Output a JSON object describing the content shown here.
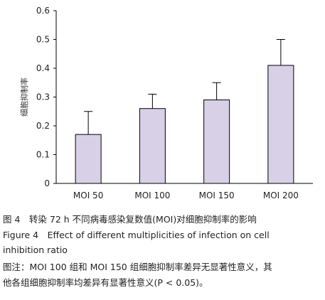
{
  "chart_data": {
    "type": "bar",
    "categories": [
      "MOI 50",
      "MOI 100",
      "MOI 150",
      "MOI 200"
    ],
    "values": [
      0.17,
      0.26,
      0.29,
      0.41
    ],
    "errors": [
      0.08,
      0.05,
      0.06,
      0.09
    ],
    "ylabel": "细胞抑制率",
    "xlabel": "",
    "ylim": [
      0,
      0.6
    ],
    "yticks": [
      "0",
      "0.1",
      "0.2",
      "0.3",
      "0.4",
      "0.5",
      "0.6"
    ],
    "bar_color": "#d8d0e6",
    "grid": false
  },
  "caption": {
    "cn": "图 4　转染 72 h 不同病毒感染复数值(MOI)对细胞抑制率的影响",
    "en_line1": "Figure 4　Effect of different multiplicities of infection on cell",
    "en_line2": "inhibition ratio",
    "note_line1": "图注：MOI 100 组和 MOI 150 组细胞抑制率差异无显著性意义，其",
    "note_line2": "他各组细胞抑制率均差异有显著性意义(P < 0.05)。"
  }
}
